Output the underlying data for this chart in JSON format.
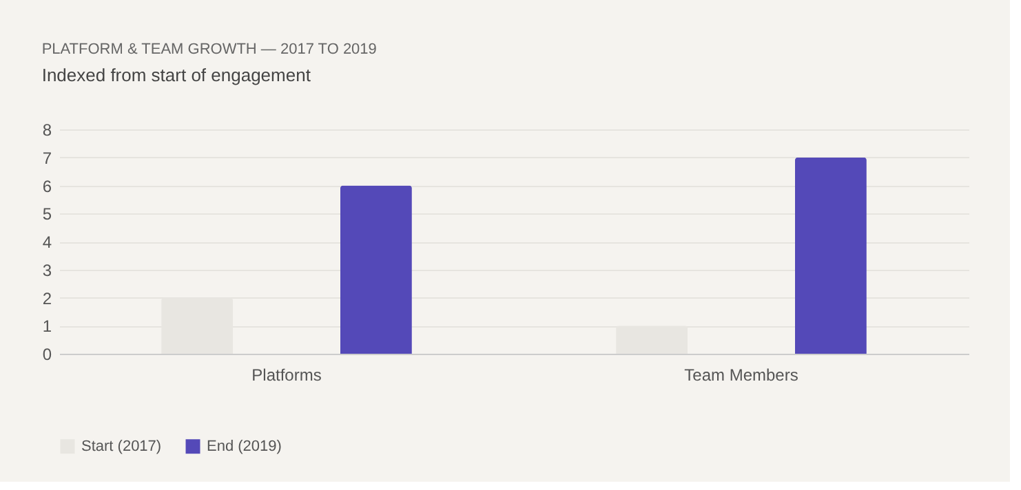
{
  "chart_data": {
    "type": "bar",
    "title": "PLATFORM & TEAM GROWTH — 2017 TO 2019",
    "subtitle": "Indexed from start of engagement",
    "categories": [
      "Platforms",
      "Team Members"
    ],
    "series": [
      {
        "name": "Start (2017)",
        "color": "#e8e6e1",
        "values": [
          2,
          1
        ]
      },
      {
        "name": "End (2019)",
        "color": "#5449b8",
        "values": [
          6,
          7
        ]
      }
    ],
    "ylim": [
      0,
      8
    ],
    "yticks": [
      0,
      1,
      2,
      3,
      4,
      5,
      6,
      7,
      8
    ],
    "grid": "y",
    "legend": "bottom"
  }
}
